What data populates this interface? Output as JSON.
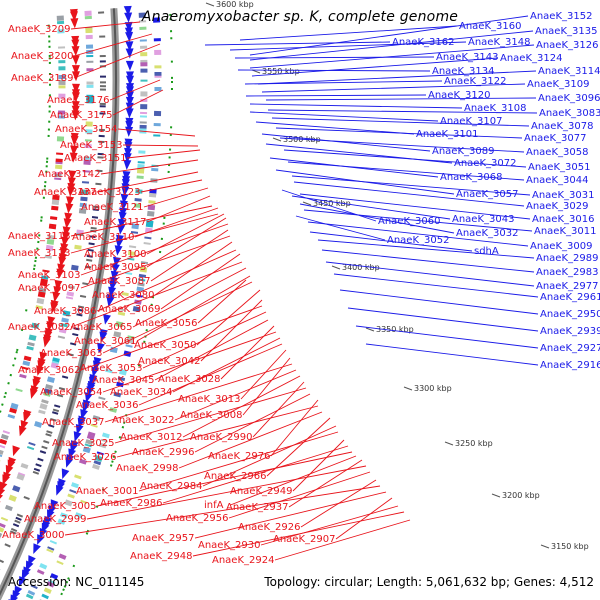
{
  "title": "Anaeromyxobacter sp. K, complete genome",
  "footer": {
    "accession": "Accession: NC_011145",
    "topology": "Topology: circular; Length: 5,061,632 bp; Genes: 4,512"
  },
  "colors": {
    "reverse_strand": "#e8141b",
    "forward_strand": "#1b1be8",
    "backbone": "#888888"
  },
  "scale": [
    "3600 kbp",
    "3550 kbp",
    "3500 kbp",
    "3450 kbp",
    "3400 kbp",
    "3350 kbp",
    "3300 kbp",
    "3250 kbp",
    "3200 kbp",
    "3150 kbp"
  ],
  "left_labels": [
    "AnaeK_3209",
    "AnaeK_3200",
    "AnaeK_3189",
    "AnaeK_3176",
    "AnaeK_3175",
    "AnaeK_3154",
    "AnaeK_3153",
    "AnaeK_3151",
    "AnaeK_3142",
    "AnaeK_3137",
    "AnaeK_3123",
    "AnaeK_3121",
    "AnaeK_3117",
    "AnaeK_3118",
    "AnaeK_3110",
    "AnaeK_3113",
    "AnaeK_3100",
    "AnaeK_3095",
    "AnaeK_3103",
    "AnaeK_3087",
    "AnaeK_3097",
    "AnaeK_3080",
    "AnaeK_3086",
    "AnaeK_3069",
    "AnaeK_3082",
    "AnaeK_3065",
    "AnaeK_3056",
    "AnaeK_3061",
    "AnaeK_3063",
    "AnaeK_3050",
    "AnaeK_3042",
    "AnaeK_3062",
    "AnaeK_3053",
    "AnaeK_3045",
    "AnaeK_3028",
    "AnaeK_3054",
    "AnaeK_3034",
    "AnaeK_3036",
    "AnaeK_3013",
    "AnaeK_3008",
    "AnaeK_3037",
    "AnaeK_3022",
    "AnaeK_3012",
    "AnaeK_2990",
    "AnaeK_3025",
    "AnaeK_2996",
    "AnaeK_2976",
    "AnaeK_3026",
    "AnaeK_2998",
    "AnaeK_2966",
    "AnaeK_2984",
    "AnaeK_3001",
    "AnaeK_2949",
    "AnaeK_2986",
    "AnaeK_3005",
    "infA",
    "AnaeK_2937",
    "AnaeK_2999",
    "AnaeK_2956",
    "AnaeK_2926",
    "AnaeK_3000",
    "AnaeK_2957",
    "AnaeK_2907",
    "AnaeK_2930",
    "AnaeK_2948",
    "AnaeK_2924"
  ],
  "right_labels": [
    "AnaeK_3152",
    "AnaeK_3160",
    "AnaeK_3135",
    "AnaeK_3162",
    "AnaeK_3148",
    "AnaeK_3126",
    "AnaeK_3143",
    "AnaeK_3124",
    "AnaeK_3134",
    "AnaeK_3114",
    "AnaeK_3122",
    "AnaeK_3109",
    "AnaeK_3120",
    "AnaeK_3096",
    "AnaeK_3108",
    "AnaeK_3083",
    "AnaeK_3107",
    "AnaeK_3078",
    "AnaeK_3101",
    "AnaeK_3077",
    "AnaeK_3089",
    "AnaeK_3058",
    "AnaeK_3072",
    "AnaeK_3051",
    "AnaeK_3068",
    "AnaeK_3044",
    "AnaeK_3057",
    "AnaeK_3031",
    "AnaeK_3029",
    "AnaeK_3060",
    "AnaeK_3043",
    "AnaeK_3016",
    "AnaeK_3032",
    "AnaeK_3011",
    "AnaeK_3052",
    "AnaeK_3009",
    "sdhA",
    "AnaeK_2989",
    "AnaeK_2983",
    "AnaeK_2977",
    "AnaeK_2961",
    "AnaeK_2950",
    "AnaeK_2939",
    "AnaeK_2927",
    "AnaeK_2916"
  ]
}
